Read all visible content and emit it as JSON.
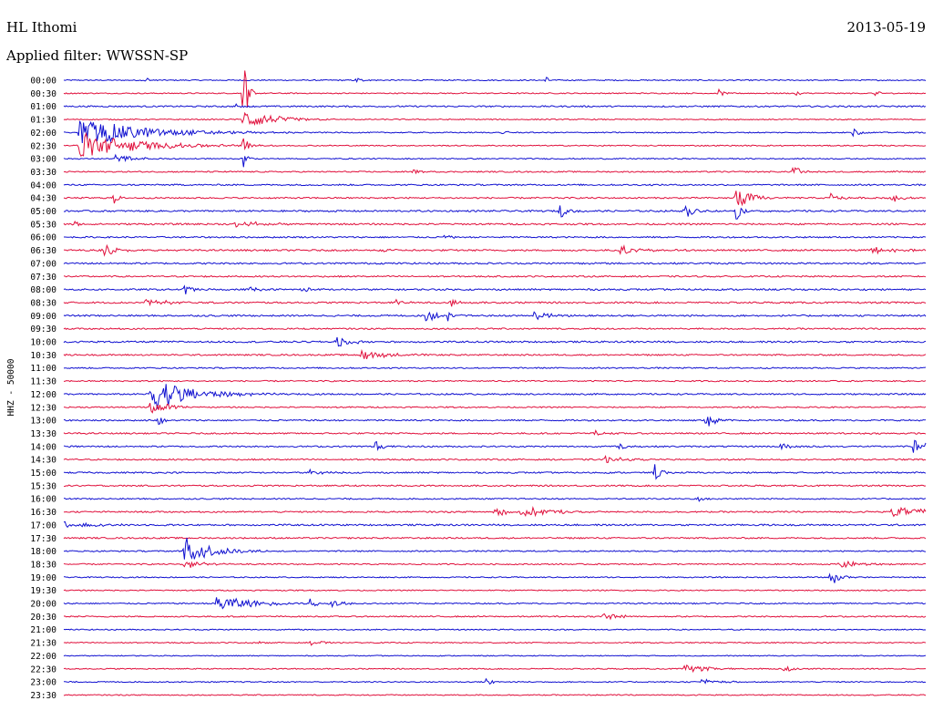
{
  "header": {
    "station": "HL Ithomi",
    "date": "2013-05-19",
    "filter": "Applied filter: WWSSN-SP"
  },
  "chart_data": {
    "type": "line",
    "kind": "helicorder",
    "ylabel": "HHZ - 50000",
    "row_labels": [
      "00:00",
      "00:30",
      "01:00",
      "01:30",
      "02:00",
      "02:30",
      "03:00",
      "03:30",
      "04:00",
      "04:30",
      "05:00",
      "05:30",
      "06:00",
      "06:30",
      "07:00",
      "07:30",
      "08:00",
      "08:30",
      "09:00",
      "09:30",
      "10:00",
      "10:30",
      "11:00",
      "11:30",
      "12:00",
      "12:30",
      "13:00",
      "13:30",
      "14:00",
      "14:30",
      "15:00",
      "15:30",
      "16:00",
      "16:30",
      "17:00",
      "17:30",
      "18:00",
      "18:30",
      "19:00",
      "19:30",
      "20:00",
      "20:30",
      "21:00",
      "21:30",
      "22:00",
      "22:30",
      "23:00",
      "23:30"
    ],
    "colors": [
      "#1010d0",
      "#e0103c"
    ],
    "noise_level": [
      0.6,
      0.6,
      0.8,
      0.6,
      0.6,
      0.6,
      0.6,
      0.7,
      0.8,
      0.8,
      0.9,
      0.9,
      0.8,
      0.9,
      0.9,
      0.8,
      0.9,
      0.9,
      0.9,
      0.8,
      0.9,
      0.8,
      0.7,
      0.7,
      0.8,
      0.7,
      0.8,
      0.8,
      0.8,
      0.8,
      0.8,
      0.8,
      0.7,
      0.8,
      0.9,
      0.8,
      0.7,
      0.7,
      0.6,
      0.6,
      0.7,
      0.7,
      0.6,
      0.6,
      0.5,
      0.6,
      0.6,
      0.6
    ],
    "events": [
      {
        "row": 0,
        "t": 0.095,
        "amp": 5,
        "dur": 0.004
      },
      {
        "row": 0,
        "t": 0.34,
        "amp": 4,
        "dur": 0.004
      },
      {
        "row": 0,
        "t": 0.56,
        "amp": 4,
        "dur": 0.004
      },
      {
        "row": 1,
        "t": 0.208,
        "amp": 55,
        "dur": 0.004
      },
      {
        "row": 1,
        "t": 0.76,
        "amp": 4,
        "dur": 0.005
      },
      {
        "row": 1,
        "t": 0.85,
        "amp": 4,
        "dur": 0.004
      },
      {
        "row": 1,
        "t": 0.94,
        "amp": 3,
        "dur": 0.008
      },
      {
        "row": 2,
        "t": 0.2,
        "amp": 3,
        "dur": 0.004
      },
      {
        "row": 3,
        "t": 0.208,
        "amp": 12,
        "dur": 0.03
      },
      {
        "row": 4,
        "t": 0.018,
        "amp": 16,
        "dur": 0.07
      },
      {
        "row": 4,
        "t": 0.51,
        "amp": 7,
        "dur": 0.003
      },
      {
        "row": 4,
        "t": 0.915,
        "amp": 7,
        "dur": 0.006
      },
      {
        "row": 5,
        "t": 0.018,
        "amp": 16,
        "dur": 0.06
      },
      {
        "row": 5,
        "t": 0.208,
        "amp": 20,
        "dur": 0.004
      },
      {
        "row": 6,
        "t": 0.06,
        "amp": 4,
        "dur": 0.025
      },
      {
        "row": 6,
        "t": 0.208,
        "amp": 14,
        "dur": 0.004
      },
      {
        "row": 7,
        "t": 0.405,
        "amp": 4,
        "dur": 0.005
      },
      {
        "row": 7,
        "t": 0.845,
        "amp": 7,
        "dur": 0.012
      },
      {
        "row": 7,
        "t": 0.96,
        "amp": 3,
        "dur": 0.004
      },
      {
        "row": 9,
        "t": 0.058,
        "amp": 8,
        "dur": 0.004
      },
      {
        "row": 9,
        "t": 0.78,
        "amp": 13,
        "dur": 0.015
      },
      {
        "row": 9,
        "t": 0.89,
        "amp": 5,
        "dur": 0.01
      },
      {
        "row": 9,
        "t": 0.955,
        "amp": 7,
        "dur": 0.012
      },
      {
        "row": 10,
        "t": 0.575,
        "amp": 8,
        "dur": 0.01
      },
      {
        "row": 10,
        "t": 0.72,
        "amp": 8,
        "dur": 0.012
      },
      {
        "row": 10,
        "t": 0.78,
        "amp": 12,
        "dur": 0.006
      },
      {
        "row": 11,
        "t": 0.012,
        "amp": 4,
        "dur": 0.004
      },
      {
        "row": 11,
        "t": 0.2,
        "amp": 6,
        "dur": 0.02
      },
      {
        "row": 12,
        "t": 0.44,
        "amp": 4,
        "dur": 0.006
      },
      {
        "row": 13,
        "t": 0.045,
        "amp": 8,
        "dur": 0.012
      },
      {
        "row": 13,
        "t": 0.37,
        "amp": 3,
        "dur": 0.01
      },
      {
        "row": 13,
        "t": 0.645,
        "amp": 5,
        "dur": 0.02
      },
      {
        "row": 13,
        "t": 0.935,
        "amp": 4,
        "dur": 0.025
      },
      {
        "row": 14,
        "t": 0.6,
        "amp": 3,
        "dur": 0.004
      },
      {
        "row": 16,
        "t": 0.14,
        "amp": 6,
        "dur": 0.01
      },
      {
        "row": 16,
        "t": 0.215,
        "amp": 7,
        "dur": 0.006
      },
      {
        "row": 16,
        "t": 0.275,
        "amp": 5,
        "dur": 0.008
      },
      {
        "row": 17,
        "t": 0.095,
        "amp": 5,
        "dur": 0.02
      },
      {
        "row": 17,
        "t": 0.385,
        "amp": 4,
        "dur": 0.01
      },
      {
        "row": 17,
        "t": 0.45,
        "amp": 6,
        "dur": 0.005
      },
      {
        "row": 18,
        "t": 0.42,
        "amp": 8,
        "dur": 0.012
      },
      {
        "row": 18,
        "t": 0.445,
        "amp": 7,
        "dur": 0.005
      },
      {
        "row": 18,
        "t": 0.545,
        "amp": 5,
        "dur": 0.02
      },
      {
        "row": 20,
        "t": 0.315,
        "amp": 8,
        "dur": 0.015
      },
      {
        "row": 21,
        "t": 0.345,
        "amp": 7,
        "dur": 0.025
      },
      {
        "row": 24,
        "t": 0.1,
        "amp": 22,
        "dur": 0.04
      },
      {
        "row": 25,
        "t": 0.1,
        "amp": 8,
        "dur": 0.02
      },
      {
        "row": 26,
        "t": 0.745,
        "amp": 14,
        "dur": 0.008
      },
      {
        "row": 26,
        "t": 0.11,
        "amp": 6,
        "dur": 0.005
      },
      {
        "row": 27,
        "t": 0.615,
        "amp": 5,
        "dur": 0.008
      },
      {
        "row": 28,
        "t": 0.36,
        "amp": 10,
        "dur": 0.006
      },
      {
        "row": 28,
        "t": 0.645,
        "amp": 6,
        "dur": 0.008
      },
      {
        "row": 28,
        "t": 0.83,
        "amp": 4,
        "dur": 0.015
      },
      {
        "row": 28,
        "t": 0.985,
        "amp": 8,
        "dur": 0.02
      },
      {
        "row": 29,
        "t": 0.625,
        "amp": 4,
        "dur": 0.02
      },
      {
        "row": 30,
        "t": 0.685,
        "amp": 12,
        "dur": 0.006
      },
      {
        "row": 30,
        "t": 0.285,
        "amp": 4,
        "dur": 0.012
      },
      {
        "row": 32,
        "t": 0.735,
        "amp": 4,
        "dur": 0.012
      },
      {
        "row": 33,
        "t": 0.5,
        "amp": 7,
        "dur": 0.01
      },
      {
        "row": 33,
        "t": 0.53,
        "amp": 6,
        "dur": 0.035
      },
      {
        "row": 33,
        "t": 0.96,
        "amp": 5,
        "dur": 0.06
      },
      {
        "row": 34,
        "t": 0.0,
        "amp": 4,
        "dur": 0.03
      },
      {
        "row": 36,
        "t": 0.14,
        "amp": 16,
        "dur": 0.03
      },
      {
        "row": 37,
        "t": 0.14,
        "amp": 6,
        "dur": 0.02
      },
      {
        "row": 37,
        "t": 0.9,
        "amp": 5,
        "dur": 0.02
      },
      {
        "row": 38,
        "t": 0.89,
        "amp": 10,
        "dur": 0.01
      },
      {
        "row": 40,
        "t": 0.175,
        "amp": 10,
        "dur": 0.04
      },
      {
        "row": 40,
        "t": 0.285,
        "amp": 6,
        "dur": 0.008
      },
      {
        "row": 40,
        "t": 0.31,
        "amp": 5,
        "dur": 0.012
      },
      {
        "row": 41,
        "t": 0.625,
        "amp": 5,
        "dur": 0.015
      },
      {
        "row": 43,
        "t": 0.22,
        "amp": 4,
        "dur": 0.005
      },
      {
        "row": 43,
        "t": 0.285,
        "amp": 4,
        "dur": 0.012
      },
      {
        "row": 45,
        "t": 0.72,
        "amp": 4,
        "dur": 0.03
      },
      {
        "row": 45,
        "t": 0.835,
        "amp": 6,
        "dur": 0.006
      },
      {
        "row": 46,
        "t": 0.49,
        "amp": 7,
        "dur": 0.006
      },
      {
        "row": 46,
        "t": 0.74,
        "amp": 3,
        "dur": 0.02
      }
    ]
  }
}
